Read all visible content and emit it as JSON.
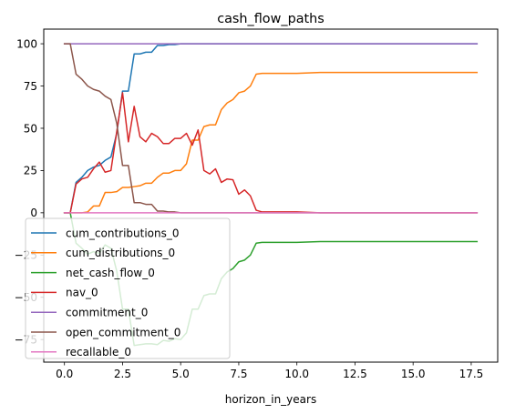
{
  "chart_data": {
    "type": "line",
    "title": "cash_flow_paths",
    "xlabel": "horizon_in_years",
    "ylabel": "",
    "xlim": [
      -0.89,
      18.64
    ],
    "ylim": [
      -88.36,
      108.66
    ],
    "xticks": [
      0.0,
      2.5,
      5.0,
      7.5,
      10.0,
      12.5,
      15.0,
      17.5
    ],
    "xtick_labels": [
      "0.0",
      "2.5",
      "5.0",
      "7.5",
      "10.0",
      "12.5",
      "15.0",
      "17.5"
    ],
    "yticks": [
      -75,
      -50,
      -25,
      0,
      25,
      50,
      75,
      100
    ],
    "ytick_labels": [
      "−75",
      "−50",
      "−25",
      "0",
      "25",
      "50",
      "75",
      "100"
    ],
    "grid": false,
    "legend_position": "lower-left",
    "series": [
      {
        "name": "cum_contributions_0",
        "color": "#1f77b4",
        "x": [
          0,
          0.25,
          0.5,
          0.75,
          1.0,
          1.25,
          1.5,
          1.75,
          2.0,
          2.25,
          2.5,
          2.75,
          3.0,
          3.25,
          3.5,
          3.75,
          4.0,
          4.25,
          4.5,
          4.75,
          5.0,
          5.5,
          6.0,
          7.0,
          8.0,
          9.0,
          10.0,
          11.0,
          12.0,
          13.0,
          14.0,
          15.0,
          16.0,
          17.0,
          17.75
        ],
        "y": [
          0,
          0,
          18,
          21,
          25,
          27,
          28,
          31,
          33,
          47,
          72,
          72,
          94,
          94,
          95,
          95,
          99,
          99,
          99.5,
          99.5,
          100,
          100,
          100,
          100,
          100,
          100,
          100,
          100,
          100,
          100,
          100,
          100,
          100,
          100,
          100
        ]
      },
      {
        "name": "cum_distributions_0",
        "color": "#ff7f0e",
        "x": [
          0,
          0.25,
          0.5,
          0.75,
          1.0,
          1.25,
          1.5,
          1.75,
          2.0,
          2.25,
          2.5,
          2.75,
          3.0,
          3.25,
          3.5,
          3.75,
          4.0,
          4.25,
          4.5,
          4.75,
          5.0,
          5.25,
          5.5,
          5.75,
          6.0,
          6.25,
          6.5,
          6.75,
          7.0,
          7.25,
          7.5,
          7.75,
          8.0,
          8.25,
          8.5,
          9.0,
          10.0,
          11.0,
          12.0,
          13.0,
          14.0,
          15.0,
          16.0,
          17.0,
          17.75
        ],
        "y": [
          0,
          0,
          0,
          0,
          0.5,
          4,
          4,
          12,
          12,
          12.5,
          15,
          15,
          15.5,
          16,
          17.5,
          17.5,
          21,
          23.5,
          23.5,
          25,
          25,
          29,
          43,
          43,
          51,
          52,
          52,
          61,
          65,
          67,
          71,
          72,
          75,
          82,
          82.5,
          82.5,
          82.5,
          83,
          83,
          83,
          83,
          83,
          83,
          83,
          83
        ]
      },
      {
        "name": "net_cash_flow_0",
        "color": "#2ca02c",
        "x": [
          0,
          0.25,
          0.5,
          0.75,
          1.0,
          1.25,
          1.5,
          1.75,
          2.0,
          2.25,
          2.5,
          2.75,
          3.0,
          3.25,
          3.5,
          3.75,
          4.0,
          4.25,
          4.5,
          4.75,
          5.0,
          5.25,
          5.5,
          5.75,
          6.0,
          6.25,
          6.5,
          6.75,
          7.0,
          7.25,
          7.5,
          7.75,
          8.0,
          8.25,
          8.5,
          9.0,
          10.0,
          11.0,
          12.0,
          13.0,
          14.0,
          15.0,
          16.0,
          17.0,
          17.75
        ],
        "y": [
          0,
          0,
          -18,
          -21,
          -24.5,
          -23,
          -24,
          -19,
          -21,
          -34.5,
          -57,
          -57,
          -78.5,
          -78,
          -77.5,
          -77.5,
          -78,
          -75.5,
          -76,
          -74.5,
          -75,
          -71,
          -57,
          -57,
          -49,
          -48,
          -48,
          -39,
          -35,
          -33,
          -29,
          -28,
          -25,
          -18,
          -17.5,
          -17.5,
          -17.5,
          -17,
          -17,
          -17,
          -17,
          -17,
          -17,
          -17,
          -17
        ]
      },
      {
        "name": "nav_0",
        "color": "#d62728",
        "x": [
          0,
          0.25,
          0.5,
          0.75,
          1.0,
          1.25,
          1.5,
          1.75,
          2.0,
          2.25,
          2.5,
          2.75,
          3.0,
          3.25,
          3.5,
          3.75,
          4.0,
          4.25,
          4.5,
          4.75,
          5.0,
          5.25,
          5.5,
          5.75,
          6.0,
          6.25,
          6.5,
          6.75,
          7.0,
          7.25,
          7.5,
          7.75,
          8.0,
          8.25,
          8.5,
          9.0,
          10.0,
          11.0,
          12.0,
          13.0,
          14.0,
          15.0,
          16.0,
          17.0,
          17.75
        ],
        "y": [
          0,
          0,
          17,
          20,
          21,
          26,
          30,
          24,
          25,
          48,
          71,
          42,
          63,
          45,
          42,
          47,
          45,
          41,
          41,
          44,
          44,
          47,
          40,
          49,
          25,
          23,
          26,
          18,
          20,
          19.5,
          11,
          13.5,
          10,
          1.5,
          0.5,
          0.5,
          0.5,
          0,
          0,
          0,
          0,
          0,
          0,
          0,
          0
        ]
      },
      {
        "name": "commitment_0",
        "color": "#9467bd",
        "x": [
          0,
          17.75
        ],
        "y": [
          100,
          100
        ]
      },
      {
        "name": "open_commitment_0",
        "color": "#8c564b",
        "x": [
          0,
          0.25,
          0.5,
          0.75,
          1.0,
          1.25,
          1.5,
          1.75,
          2.0,
          2.25,
          2.5,
          2.75,
          3.0,
          3.25,
          3.5,
          3.75,
          4.0,
          4.25,
          4.5,
          4.75,
          5.0,
          6.0,
          8.0,
          10.0,
          12.0,
          14.0,
          16.0,
          17.75
        ],
        "y": [
          100,
          100,
          82,
          79,
          75,
          73,
          72,
          69,
          67,
          53,
          28,
          28,
          6,
          6,
          5,
          5,
          1,
          1,
          0.5,
          0.5,
          0,
          0,
          0,
          0,
          0,
          0,
          0,
          0
        ]
      },
      {
        "name": "recallable_0",
        "color": "#e377c2",
        "x": [
          0,
          17.75
        ],
        "y": [
          0,
          0
        ]
      }
    ]
  }
}
